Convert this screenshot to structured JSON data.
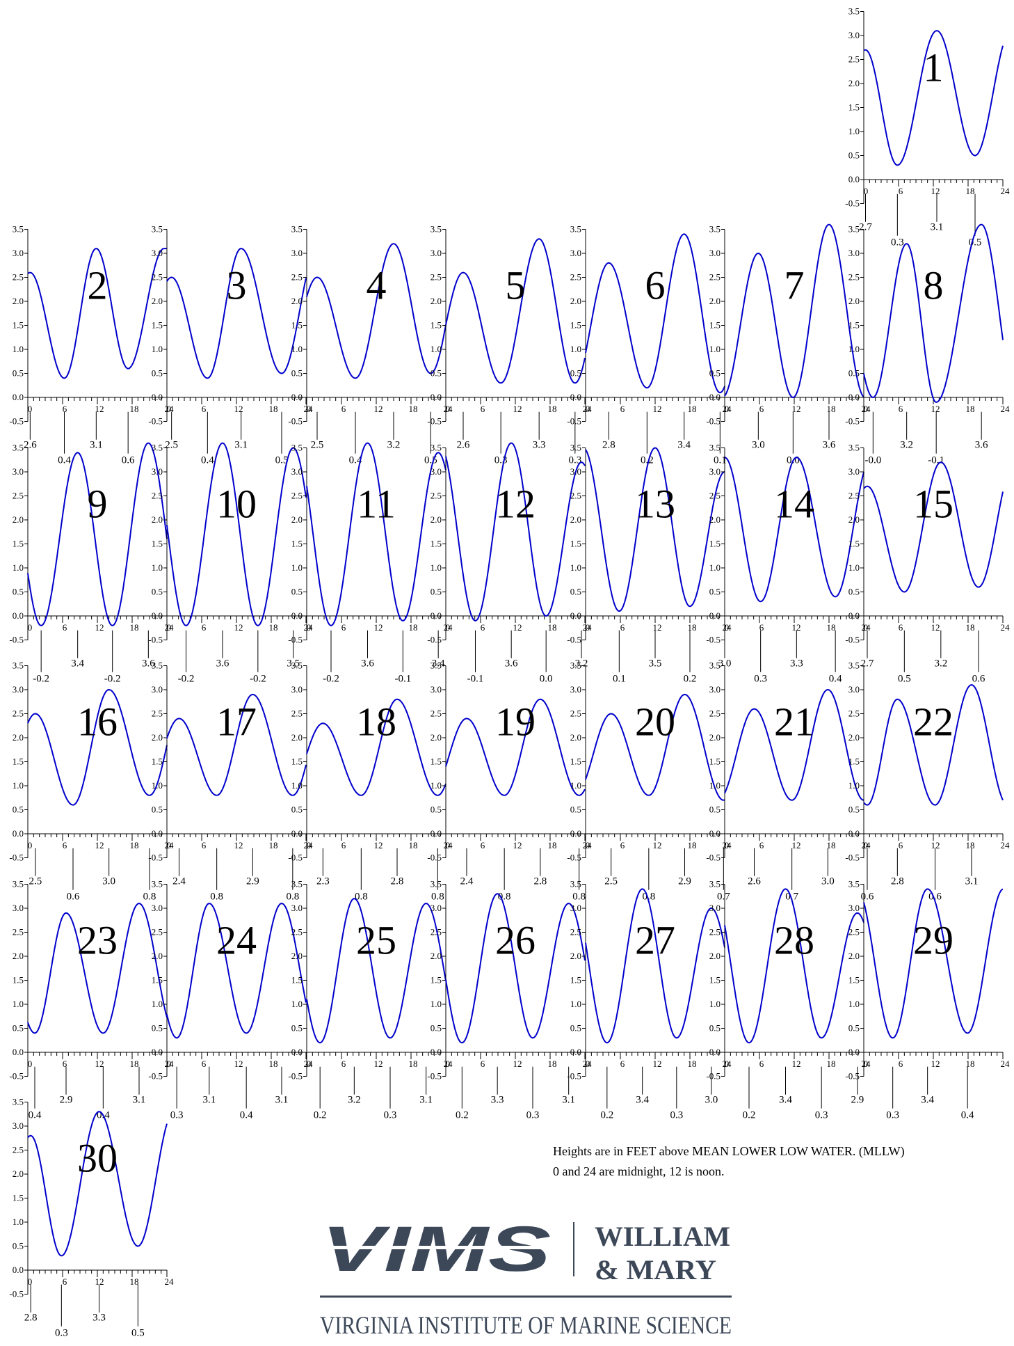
{
  "chart_data": {
    "type": "line",
    "series_color": "#0000cc",
    "y_ticks": [
      "3.5",
      "3.0",
      "2.5",
      "2.0",
      "1.5",
      "1.0",
      "0.5",
      "0.0",
      "-0.5"
    ],
    "x_ticks": [
      "0",
      "6",
      "12",
      "18",
      "24"
    ],
    "ylim": [
      -0.5,
      3.5
    ],
    "xlim": [
      0,
      24
    ],
    "days": [
      {
        "day": "1",
        "events": [
          {
            "t": 0.3,
            "label": "2.7",
            "high": true
          },
          {
            "t": 5.8,
            "label": "0.3",
            "high": false
          },
          {
            "t": 12.6,
            "label": "3.1",
            "high": true
          },
          {
            "t": 19.2,
            "label": "0.5",
            "high": false
          }
        ]
      },
      {
        "day": "2",
        "events": [
          {
            "t": 0.4,
            "label": "2.6",
            "high": true
          },
          {
            "t": 6.3,
            "label": "0.4",
            "high": false
          },
          {
            "t": 11.8,
            "label": "3.1",
            "high": true
          },
          {
            "t": 17.3,
            "label": "0.6",
            "high": false
          }
        ]
      },
      {
        "day": "3",
        "events": [
          {
            "t": 0.8,
            "label": "2.5",
            "high": true
          },
          {
            "t": 7.0,
            "label": "0.4",
            "high": false
          },
          {
            "t": 12.8,
            "label": "3.1",
            "high": true
          },
          {
            "t": 19.8,
            "label": "0.5",
            "high": false
          }
        ]
      },
      {
        "day": "4",
        "events": [
          {
            "t": 1.8,
            "label": "2.5",
            "high": true
          },
          {
            "t": 8.4,
            "label": "0.4",
            "high": false
          },
          {
            "t": 15.0,
            "label": "3.2",
            "high": true
          },
          {
            "t": 21.4,
            "label": "0.5",
            "high": false
          }
        ]
      },
      {
        "day": "5",
        "events": [
          {
            "t": 3.0,
            "label": "2.6",
            "high": true
          },
          {
            "t": 9.5,
            "label": "0.3",
            "high": false
          },
          {
            "t": 16.1,
            "label": "3.3",
            "high": true
          },
          {
            "t": 22.3,
            "label": "0.3",
            "high": false
          }
        ]
      },
      {
        "day": "6",
        "events": [
          {
            "t": 4.0,
            "label": "2.8",
            "high": true
          },
          {
            "t": 10.6,
            "label": "0.2",
            "high": false
          },
          {
            "t": 17.0,
            "label": "3.4",
            "high": true
          },
          {
            "t": 23.2,
            "label": "0.1",
            "high": false
          }
        ]
      },
      {
        "day": "7",
        "events": [
          {
            "t": 5.8,
            "label": "3.0",
            "high": true
          },
          {
            "t": 11.8,
            "label": "0.0",
            "high": false
          },
          {
            "t": 18.0,
            "label": "3.6",
            "high": true
          }
        ]
      },
      {
        "day": "8",
        "events": [
          {
            "t": 1.6,
            "label": "-0.0",
            "high": false
          },
          {
            "t": 7.4,
            "label": "3.2",
            "high": true
          },
          {
            "t": 12.5,
            "label": "-0.1",
            "high": false
          },
          {
            "t": 20.3,
            "label": "3.6",
            "high": true
          }
        ]
      },
      {
        "day": "9",
        "events": [
          {
            "t": 2.3,
            "label": "-0.2",
            "high": false
          },
          {
            "t": 8.6,
            "label": "3.4",
            "high": true
          },
          {
            "t": 14.6,
            "label": "-0.2",
            "high": false
          },
          {
            "t": 20.8,
            "label": "3.6",
            "high": true
          }
        ]
      },
      {
        "day": "10",
        "events": [
          {
            "t": 3.3,
            "label": "-0.2",
            "high": false
          },
          {
            "t": 9.6,
            "label": "3.6",
            "high": true
          },
          {
            "t": 15.7,
            "label": "-0.2",
            "high": false
          },
          {
            "t": 21.8,
            "label": "3.5",
            "high": true
          }
        ]
      },
      {
        "day": "11",
        "events": [
          {
            "t": 4.2,
            "label": "-0.2",
            "high": false
          },
          {
            "t": 10.5,
            "label": "3.6",
            "high": true
          },
          {
            "t": 16.6,
            "label": "-0.1",
            "high": false
          },
          {
            "t": 22.7,
            "label": "3.4",
            "high": true
          }
        ]
      },
      {
        "day": "12",
        "events": [
          {
            "t": 5.1,
            "label": "-0.1",
            "high": false
          },
          {
            "t": 11.3,
            "label": "3.6",
            "high": true
          },
          {
            "t": 17.3,
            "label": "0.0",
            "high": false
          },
          {
            "t": 23.4,
            "label": "3.2",
            "high": true
          }
        ]
      },
      {
        "day": "13",
        "events": [
          {
            "t": 5.8,
            "label": "0.1",
            "high": false
          },
          {
            "t": 12.0,
            "label": "3.5",
            "high": true
          },
          {
            "t": 18.0,
            "label": "0.2",
            "high": false
          },
          {
            "t": 24.0,
            "label": "3.0",
            "high": true
          }
        ]
      },
      {
        "day": "14",
        "events": [
          {
            "t": 6.2,
            "label": "0.3",
            "high": false
          },
          {
            "t": 12.4,
            "label": "3.3",
            "high": true
          },
          {
            "t": 19.1,
            "label": "0.4",
            "high": false
          }
        ]
      },
      {
        "day": "15",
        "events": [
          {
            "t": 0.6,
            "label": "2.7",
            "high": true
          },
          {
            "t": 7.0,
            "label": "0.5",
            "high": false
          },
          {
            "t": 13.3,
            "label": "3.2",
            "high": true
          },
          {
            "t": 19.8,
            "label": "0.6",
            "high": false
          }
        ]
      },
      {
        "day": "16",
        "events": [
          {
            "t": 1.3,
            "label": "2.5",
            "high": true
          },
          {
            "t": 7.8,
            "label": "0.6",
            "high": false
          },
          {
            "t": 14.0,
            "label": "3.0",
            "high": true
          },
          {
            "t": 21.0,
            "label": "0.8",
            "high": false
          }
        ]
      },
      {
        "day": "17",
        "events": [
          {
            "t": 2.1,
            "label": "2.4",
            "high": true
          },
          {
            "t": 8.6,
            "label": "0.8",
            "high": false
          },
          {
            "t": 14.8,
            "label": "2.9",
            "high": true
          },
          {
            "t": 21.7,
            "label": "0.8",
            "high": false
          }
        ]
      },
      {
        "day": "18",
        "events": [
          {
            "t": 2.8,
            "label": "2.3",
            "high": true
          },
          {
            "t": 9.4,
            "label": "0.8",
            "high": false
          },
          {
            "t": 15.6,
            "label": "2.8",
            "high": true
          },
          {
            "t": 22.6,
            "label": "0.8",
            "high": false
          }
        ]
      },
      {
        "day": "19",
        "events": [
          {
            "t": 3.6,
            "label": "2.4",
            "high": true
          },
          {
            "t": 10.1,
            "label": "0.8",
            "high": false
          },
          {
            "t": 16.3,
            "label": "2.8",
            "high": true
          },
          {
            "t": 23.0,
            "label": "0.8",
            "high": false
          }
        ]
      },
      {
        "day": "20",
        "events": [
          {
            "t": 4.4,
            "label": "2.5",
            "high": true
          },
          {
            "t": 10.9,
            "label": "0.8",
            "high": false
          },
          {
            "t": 17.1,
            "label": "2.9",
            "high": true
          },
          {
            "t": 23.8,
            "label": "0.7",
            "high": false
          }
        ]
      },
      {
        "day": "21",
        "events": [
          {
            "t": 5.1,
            "label": "2.6",
            "high": true
          },
          {
            "t": 11.6,
            "label": "0.7",
            "high": false
          },
          {
            "t": 17.8,
            "label": "3.0",
            "high": true
          }
        ]
      },
      {
        "day": "22",
        "events": [
          {
            "t": 0.6,
            "label": "0.6",
            "high": false
          },
          {
            "t": 5.8,
            "label": "2.8",
            "high": true
          },
          {
            "t": 12.3,
            "label": "0.6",
            "high": false
          },
          {
            "t": 18.6,
            "label": "3.1",
            "high": true
          }
        ]
      },
      {
        "day": "23",
        "events": [
          {
            "t": 1.2,
            "label": "0.4",
            "high": false
          },
          {
            "t": 6.6,
            "label": "2.9",
            "high": true
          },
          {
            "t": 13.0,
            "label": "0.4",
            "high": false
          },
          {
            "t": 19.2,
            "label": "3.1",
            "high": true
          }
        ]
      },
      {
        "day": "24",
        "events": [
          {
            "t": 1.7,
            "label": "0.3",
            "high": false
          },
          {
            "t": 7.3,
            "label": "3.1",
            "high": true
          },
          {
            "t": 13.7,
            "label": "0.4",
            "high": false
          },
          {
            "t": 19.8,
            "label": "3.1",
            "high": true
          }
        ]
      },
      {
        "day": "25",
        "events": [
          {
            "t": 2.3,
            "label": "0.2",
            "high": false
          },
          {
            "t": 8.2,
            "label": "3.2",
            "high": true
          },
          {
            "t": 14.4,
            "label": "0.3",
            "high": false
          },
          {
            "t": 20.6,
            "label": "3.1",
            "high": true
          }
        ]
      },
      {
        "day": "26",
        "events": [
          {
            "t": 2.8,
            "label": "0.2",
            "high": false
          },
          {
            "t": 8.9,
            "label": "3.3",
            "high": true
          },
          {
            "t": 15.0,
            "label": "0.3",
            "high": false
          },
          {
            "t": 21.2,
            "label": "3.1",
            "high": true
          }
        ]
      },
      {
        "day": "27",
        "events": [
          {
            "t": 3.7,
            "label": "0.2",
            "high": false
          },
          {
            "t": 9.8,
            "label": "3.4",
            "high": true
          },
          {
            "t": 15.7,
            "label": "0.3",
            "high": false
          },
          {
            "t": 21.7,
            "label": "3.0",
            "high": true
          }
        ]
      },
      {
        "day": "28",
        "events": [
          {
            "t": 4.2,
            "label": "0.2",
            "high": false
          },
          {
            "t": 10.5,
            "label": "3.4",
            "high": true
          },
          {
            "t": 16.7,
            "label": "0.3",
            "high": false
          },
          {
            "t": 22.9,
            "label": "2.9",
            "high": true
          }
        ]
      },
      {
        "day": "29",
        "events": [
          {
            "t": 5.0,
            "label": "0.3",
            "high": false
          },
          {
            "t": 11.0,
            "label": "3.4",
            "high": true
          },
          {
            "t": 17.9,
            "label": "0.4",
            "high": false
          }
        ]
      },
      {
        "day": "30",
        "events": [
          {
            "t": 0.5,
            "label": "2.8",
            "high": true
          },
          {
            "t": 5.8,
            "label": "0.3",
            "high": false
          },
          {
            "t": 12.3,
            "label": "3.3",
            "high": true
          },
          {
            "t": 19.0,
            "label": "0.5",
            "high": false
          }
        ]
      }
    ]
  },
  "notes": {
    "line1": "Heights are in FEET above MEAN LOWER LOW WATER. (MLLW)",
    "line2": "0 and 24 are midnight, 12 is noon."
  },
  "logo": {
    "vims": "VIMS",
    "william": "WILLIAM",
    "mary": "& MARY",
    "institute": "VIRGINIA INSTITUTE OF MARINE SCIENCE",
    "color": "#3c4758"
  }
}
